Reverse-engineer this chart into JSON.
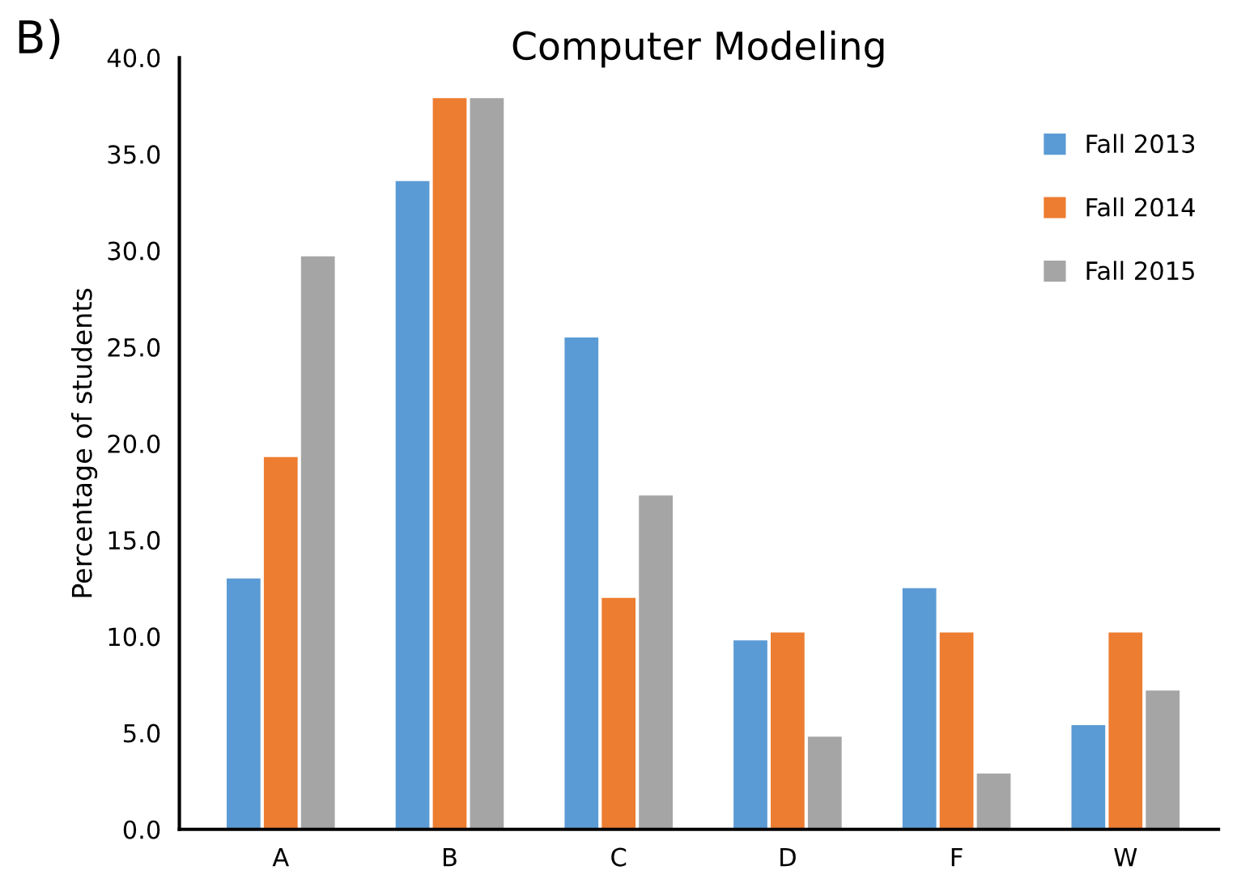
{
  "chart_data": {
    "type": "bar",
    "title": "Computer Modeling",
    "ylabel": "Percentage of students",
    "annotations": [
      "B)"
    ],
    "categories": [
      "A",
      "B",
      "C",
      "D",
      "F",
      "W"
    ],
    "series": [
      {
        "name": "Fall 2013",
        "color": "#5b9bd5",
        "values": [
          13.0,
          33.6,
          25.5,
          9.8,
          12.5,
          5.4
        ]
      },
      {
        "name": "Fall 2014",
        "color": "#ed7d31",
        "values": [
          19.3,
          37.9,
          12.0,
          10.2,
          10.2,
          10.2
        ]
      },
      {
        "name": "Fall 2015",
        "color": "#a5a5a5",
        "values": [
          29.7,
          37.9,
          17.3,
          4.8,
          2.9,
          7.2
        ]
      }
    ],
    "ylim": [
      0,
      40
    ],
    "yticks": [
      {
        "value": 0,
        "label": "0.0"
      },
      {
        "value": 5,
        "label": "5.0"
      },
      {
        "value": 10,
        "label": "10.0"
      },
      {
        "value": 15,
        "label": "15.0"
      },
      {
        "value": 20,
        "label": "20.0"
      },
      {
        "value": 25,
        "label": "25.0"
      },
      {
        "value": 30,
        "label": "30.0"
      },
      {
        "value": 35,
        "label": "35.0"
      },
      {
        "value": 40,
        "label": "40.0"
      }
    ],
    "grid": false,
    "legend": "top right"
  }
}
